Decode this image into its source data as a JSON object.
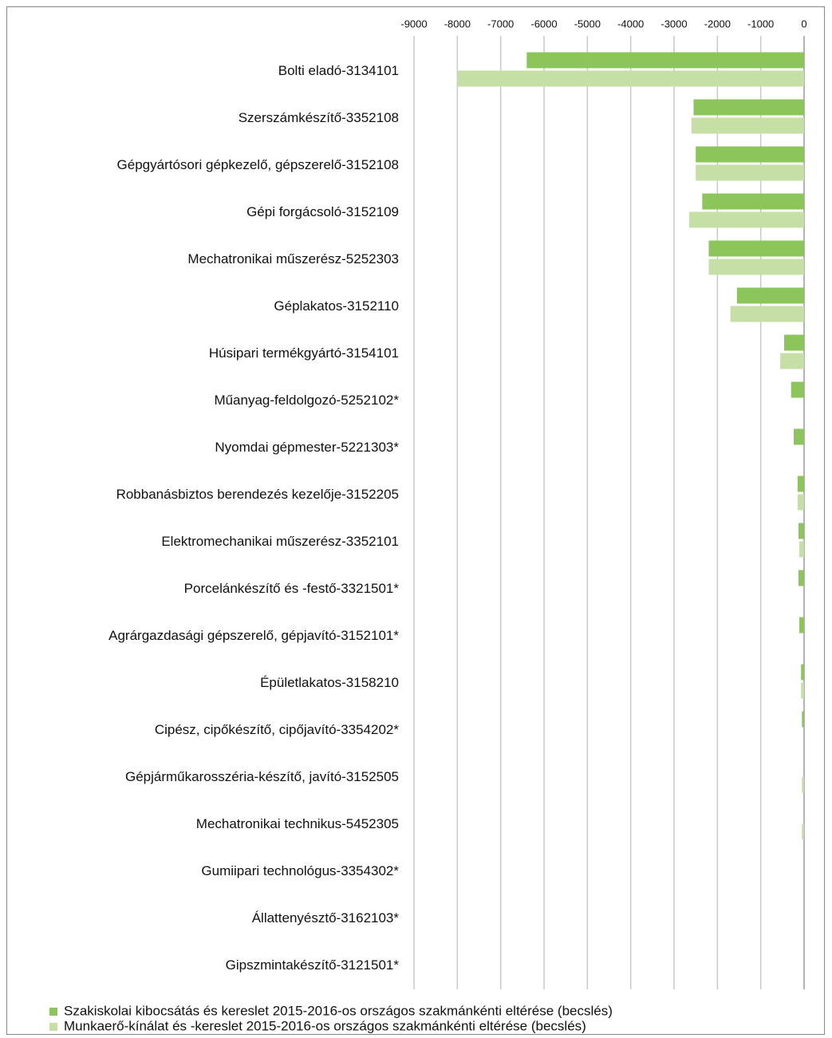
{
  "chart_data": {
    "type": "bar",
    "orientation": "horizontal",
    "categories": [
      "Bolti eladó-3134101",
      "Szerszámkészítő-3352108",
      "Gépgyártósori gépkezelő, gépszerelő-3152108",
      "Gépi forgácsoló-3152109",
      "Mechatronikai műszerész-5252303",
      "Géplakatos-3152110",
      "Húsipari termékgyártó-3154101",
      "Műanyag-feldolgozó-5252102*",
      "Nyomdai gépmester-5221303*",
      "Robbanásbiztos berendezés kezelője-3152205",
      "Elektromechanikai műszerész-3352101",
      "Porcelánkészítő és -festő-3321501*",
      "Agrárgazdasági gépszerelő, gépjavító-3152101*",
      "Épületlakatos-3158210",
      "Cipész, cipőkészítő, cipőjavító-3354202*",
      "Gépjárműkarosszéria-készítő, javító-3152505",
      "Mechatronikai technikus-5452305",
      "Gumiipari technológus-3354302*",
      "Állattenyésztő-3162103*",
      "Gipszmintakészítő-3121501*"
    ],
    "series": [
      {
        "name": "Szakiskolai kibocsátás és kereslet 2015-2016-os országos szakmánkénti eltérése (becslés)",
        "color": "#8cc65a",
        "values": [
          -6400,
          -2550,
          -2500,
          -2350,
          -2200,
          -1550,
          -460,
          -300,
          -240,
          -150,
          -130,
          -130,
          -110,
          -70,
          -50,
          null,
          null,
          null,
          null,
          null
        ]
      },
      {
        "name": "Munkaerő-kínálat és -kereslet 2015-2016-os országos szakmánkénti eltérése (becslés)",
        "color": "#c6dfa6",
        "values": [
          -8000,
          -2600,
          -2500,
          -2650,
          -2200,
          -1700,
          -550,
          null,
          null,
          -150,
          -110,
          null,
          null,
          -70,
          null,
          -50,
          -50,
          null,
          null,
          null
        ]
      }
    ],
    "xlim": [
      -9000,
      0
    ],
    "xticks": [
      -9000,
      -8000,
      -7000,
      -6000,
      -5000,
      -4000,
      -3000,
      -2000,
      -1000,
      0
    ],
    "grid": true,
    "legend": "bottom"
  }
}
